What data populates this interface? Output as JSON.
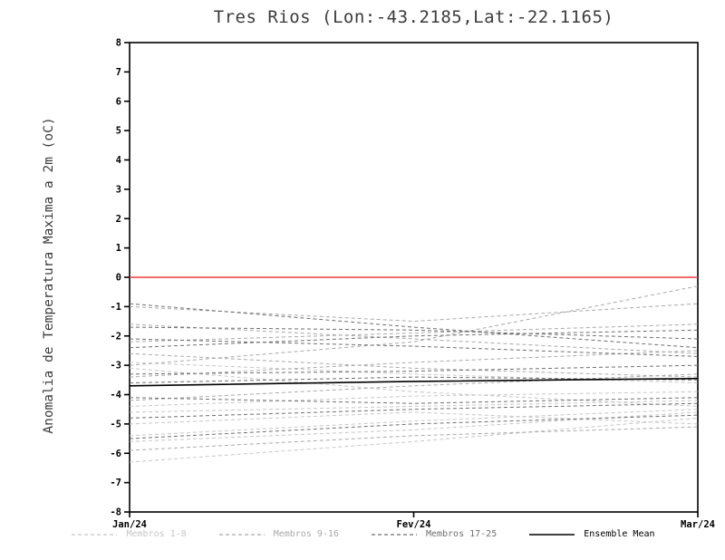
{
  "chart_data": {
    "type": "line",
    "title": "Tres Rios (Lon:-43.2185,Lat:-22.1165)",
    "ylabel": "Anomalia de Temperatura Maxima a 2m (oC)",
    "x_labels": [
      "Jan/24",
      "Fev/24",
      "Mar/24"
    ],
    "ylim": [
      -8,
      8
    ],
    "ytick_step": 1,
    "grid": false,
    "legend_position": "bottom",
    "zero_line": {
      "y": 0,
      "color": "#f23b3b"
    },
    "groups": [
      {
        "name": "Membros 1-8",
        "color": "#c6c6c6",
        "style": "dashed",
        "members": [
          [
            -3.1,
            -3.9,
            -4.4
          ],
          [
            -4.6,
            -4.4,
            -4.2
          ],
          [
            -5.4,
            -4.9,
            -4.5
          ],
          [
            -6.3,
            -5.6,
            -4.8
          ],
          [
            -2.9,
            -3.3,
            -3.6
          ],
          [
            -5.0,
            -4.6,
            -5.0
          ],
          [
            -4.4,
            -4.05,
            -3.9
          ],
          [
            -5.6,
            -5.2,
            -4.6
          ]
        ]
      },
      {
        "name": "Membros 9-16",
        "color": "#a9a9a9",
        "style": "dashed",
        "members": [
          [
            -1.6,
            -2.1,
            -2.6
          ],
          [
            -2.2,
            -1.9,
            -1.6
          ],
          [
            -3.4,
            -2.9,
            -2.5
          ],
          [
            -4.2,
            -3.7,
            -3.3
          ],
          [
            -1.0,
            -1.5,
            -0.9
          ],
          [
            -2.6,
            -3.1,
            -3.4
          ],
          [
            -5.9,
            -5.4,
            -5.1
          ],
          [
            -3.0,
            -2.2,
            -0.3
          ]
        ]
      },
      {
        "name": "Membros 17-25",
        "color": "#6f6f6f",
        "style": "dashed",
        "members": [
          [
            -1.7,
            -1.8,
            -2.1
          ],
          [
            -2.1,
            -2.35,
            -2.7
          ],
          [
            -3.3,
            -3.2,
            -3.0
          ],
          [
            -4.1,
            -4.3,
            -4.1
          ],
          [
            -5.5,
            -5.0,
            -4.7
          ],
          [
            -2.4,
            -2.0,
            -1.8
          ],
          [
            -3.6,
            -3.4,
            -3.5
          ],
          [
            -4.8,
            -4.5,
            -4.3
          ],
          [
            -0.9,
            -1.7,
            -2.4
          ]
        ]
      }
    ],
    "mean": {
      "name": "Ensemble Mean",
      "color": "#000000",
      "style": "solid",
      "values": [
        -3.7,
        -3.55,
        -3.45
      ]
    }
  }
}
